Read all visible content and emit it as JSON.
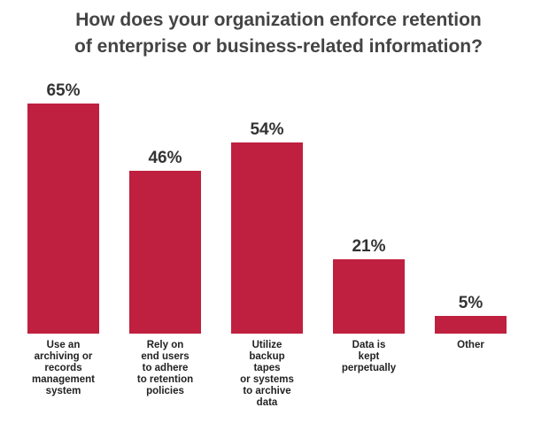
{
  "chart_data": {
    "type": "bar",
    "title": [
      "How does your organization enforce retention",
      "of enterprise or business-related information?"
    ],
    "categories": [
      [
        "Use an",
        "archiving or",
        "records",
        "management",
        "system"
      ],
      [
        "Rely on",
        "end users",
        "to adhere",
        "to retention",
        "policies"
      ],
      [
        "Utilize",
        "backup",
        "tapes",
        "or systems",
        "to archive",
        "data"
      ],
      [
        "Data is",
        "kept",
        "perpetually"
      ],
      [
        "Other"
      ]
    ],
    "values": [
      65,
      46,
      54,
      21,
      5
    ],
    "value_labels": [
      "65%",
      "46%",
      "54%",
      "21%",
      "5%"
    ],
    "unit": "%",
    "ylim": [
      0,
      65
    ],
    "grid": false,
    "legend": "none",
    "bar_color": "#C0203F"
  }
}
